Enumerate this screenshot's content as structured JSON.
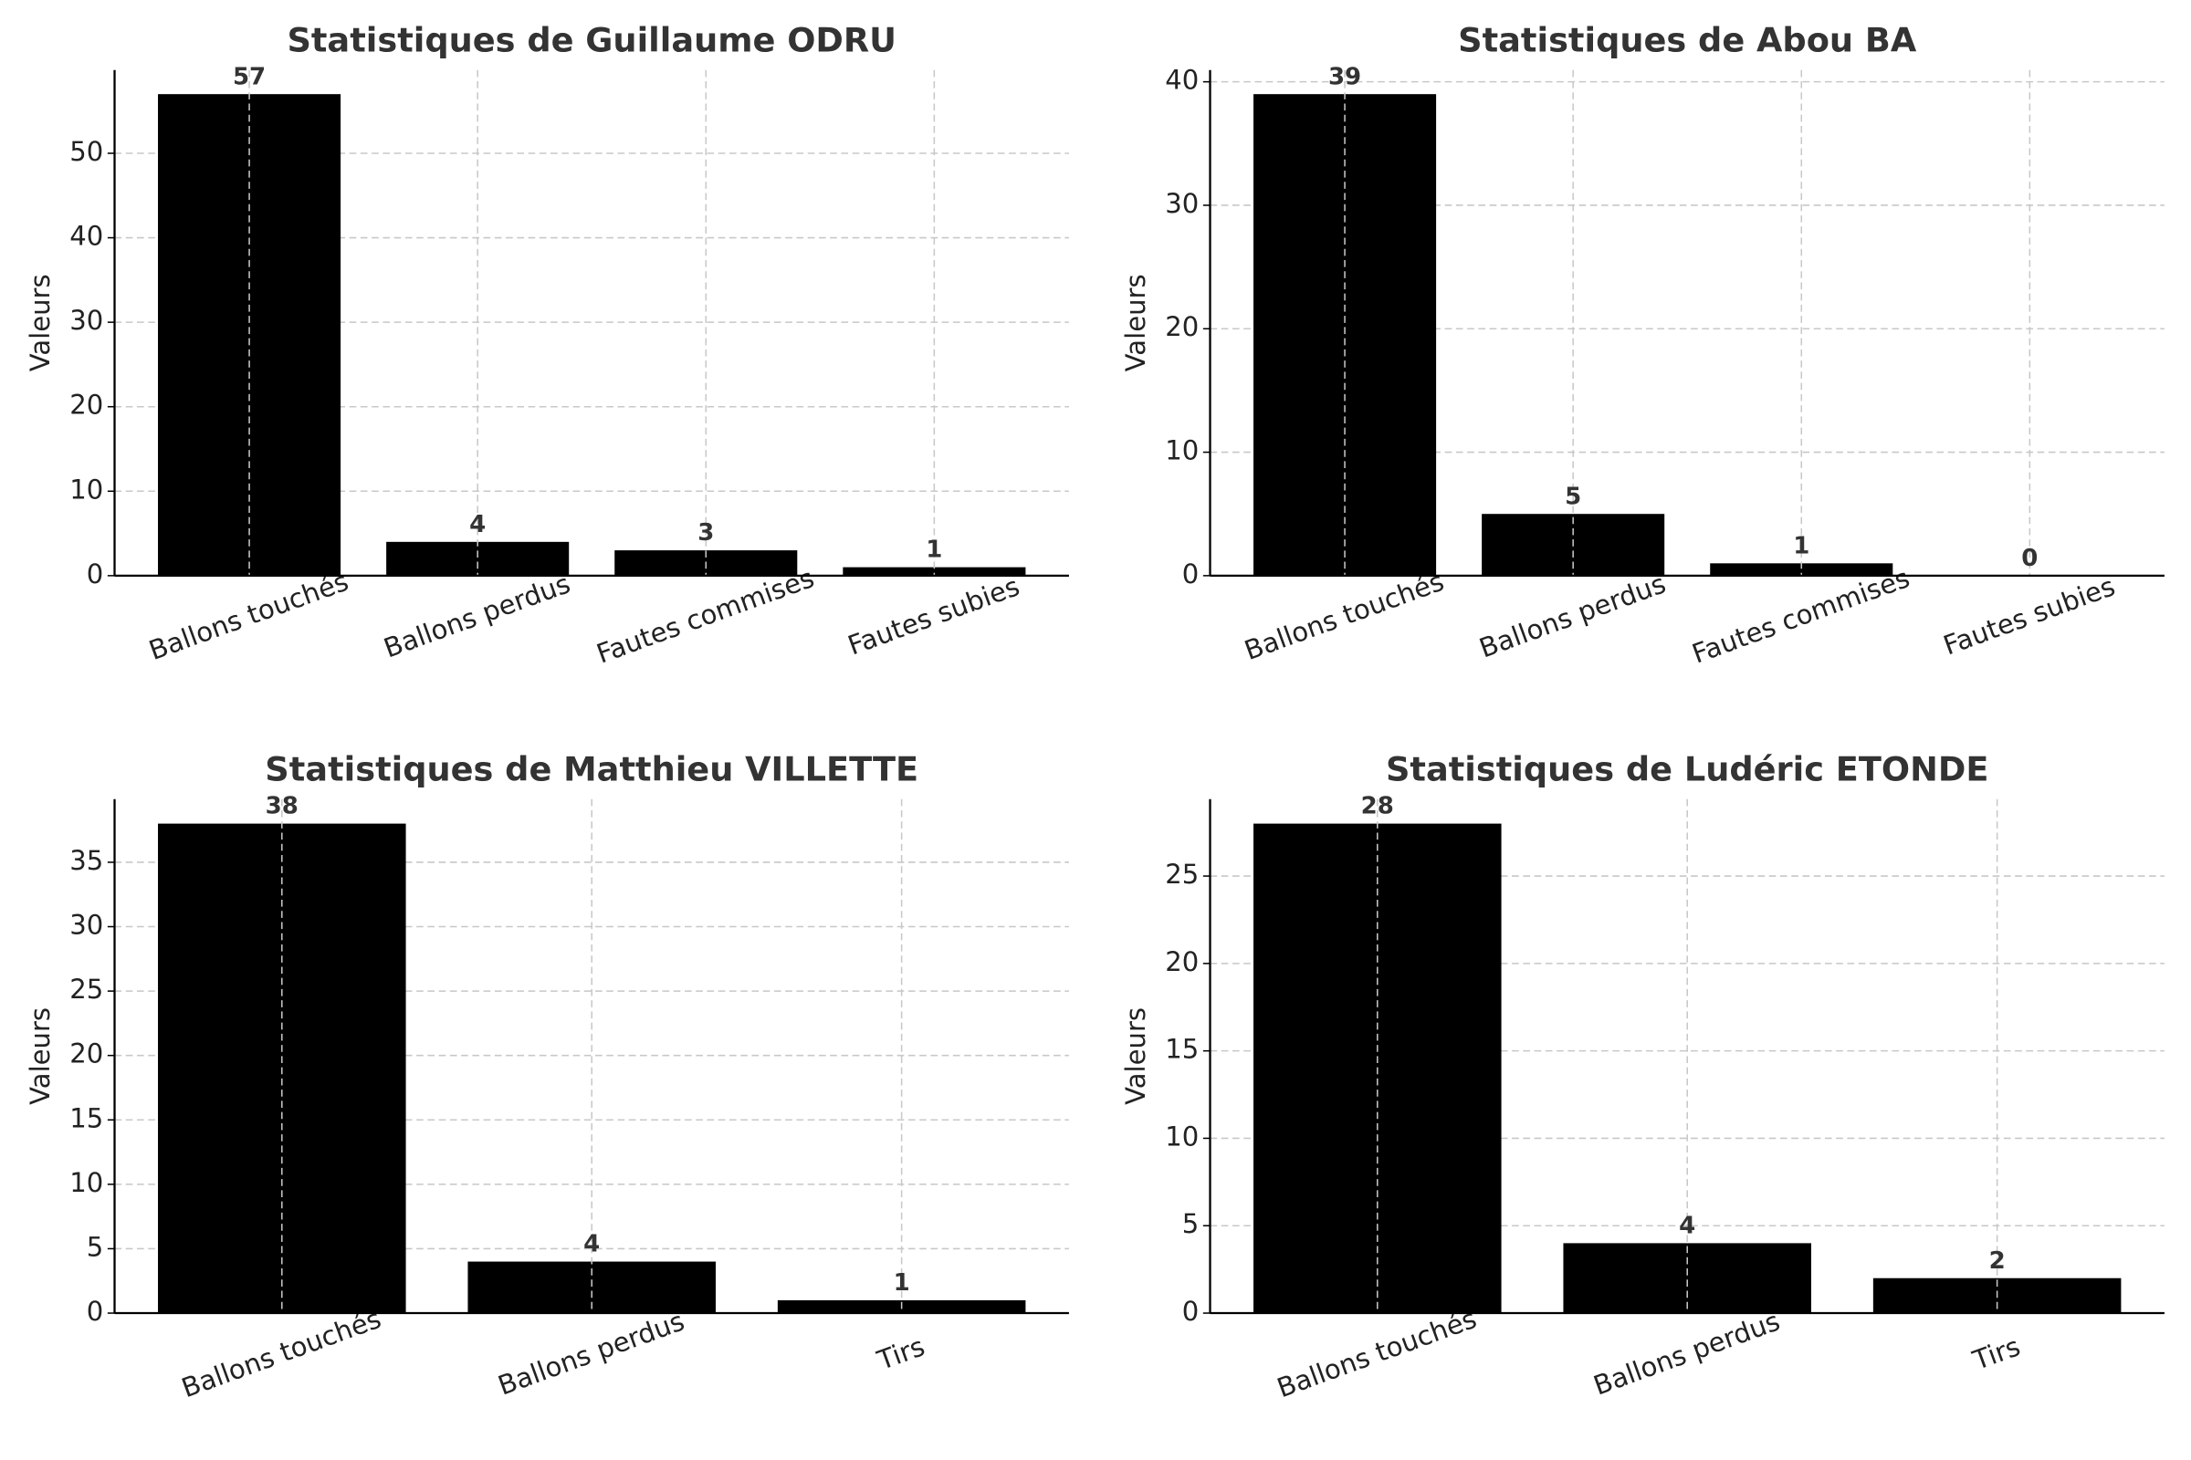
{
  "chart_data": [
    {
      "type": "bar",
      "title": "Statistiques de Guillaume ODRU",
      "ylabel": "Valeurs",
      "categories": [
        "Ballons touchés",
        "Ballons perdus",
        "Fautes commises",
        "Fautes subies"
      ],
      "values": [
        57,
        4,
        3,
        1
      ],
      "color": "#000000",
      "ylim": [
        0,
        59.85
      ],
      "yticks": [
        0,
        10,
        20,
        30,
        40,
        50
      ],
      "grid": true
    },
    {
      "type": "bar",
      "title": "Statistiques de Abou BA",
      "ylabel": "Valeurs",
      "categories": [
        "Ballons touchés",
        "Ballons perdus",
        "Fautes commises",
        "Fautes subies"
      ],
      "values": [
        39,
        5,
        1,
        0
      ],
      "color": "#000000",
      "ylim": [
        0,
        40.95
      ],
      "yticks": [
        0,
        10,
        20,
        30,
        40
      ],
      "grid": true
    },
    {
      "type": "bar",
      "title": "Statistiques de Matthieu VILLETTE",
      "ylabel": "Valeurs",
      "categories": [
        "Ballons touchés",
        "Ballons perdus",
        "Tirs"
      ],
      "values": [
        38,
        4,
        1
      ],
      "color": "#000000",
      "ylim": [
        0,
        39.9
      ],
      "yticks": [
        0,
        5,
        10,
        15,
        20,
        25,
        30,
        35
      ],
      "grid": true
    },
    {
      "type": "bar",
      "title": "Statistiques de Ludéric ETONDE",
      "ylabel": "Valeurs",
      "categories": [
        "Ballons touchés",
        "Ballons perdus",
        "Tirs"
      ],
      "values": [
        28,
        4,
        2
      ],
      "color": "#000000",
      "ylim": [
        0,
        29.4
      ],
      "yticks": [
        0,
        5,
        10,
        15,
        20,
        25
      ],
      "grid": true
    }
  ]
}
